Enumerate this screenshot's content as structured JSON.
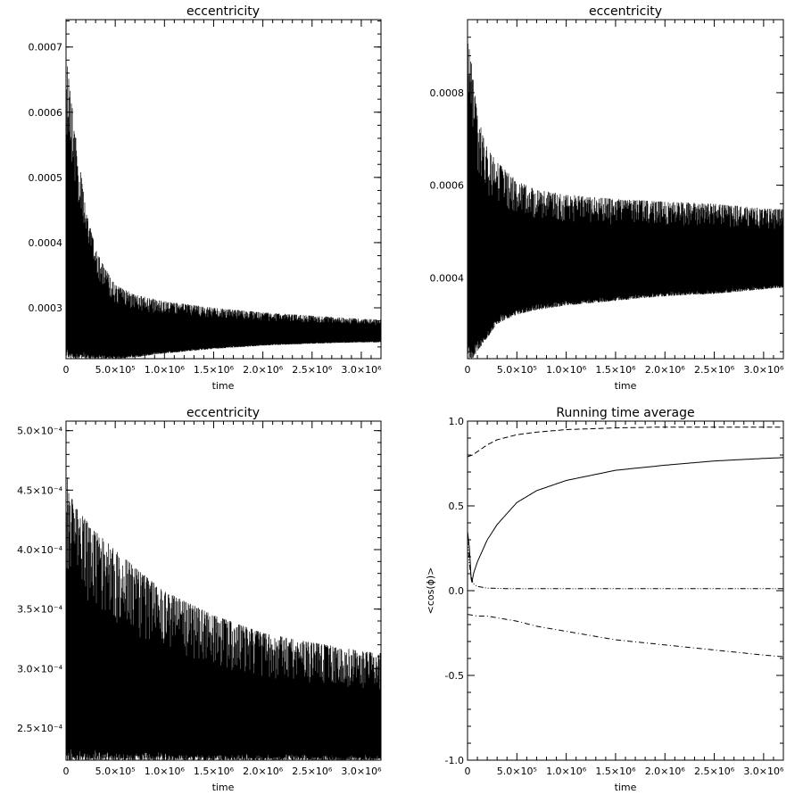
{
  "chart_data": [
    {
      "type": "line",
      "title": "eccentricity",
      "xlabel": "time",
      "ylabel": "",
      "xlim": [
        0,
        3200000
      ],
      "ylim": [
        0.000222,
        0.000742
      ],
      "x_tick_labels": [
        "0",
        "5.0×10⁵",
        "1.0×10⁶",
        "1.5×10⁶",
        "2.0×10⁶",
        "2.5×10⁶",
        "3.0×10⁶"
      ],
      "x_ticks": [
        0,
        500000,
        1000000,
        1500000,
        2000000,
        2500000,
        3000000
      ],
      "y_tick_labels": [
        "0.0003",
        "0.0004",
        "0.0005",
        "0.0006",
        "0.0007"
      ],
      "y_ticks": [
        0.0003,
        0.0004,
        0.0005,
        0.0006,
        0.0007
      ],
      "series": [
        {
          "style": "oscillating-band",
          "x": [
            0,
            50000,
            100000,
            150000,
            200000,
            300000,
            400000,
            500000,
            700000,
            1000000,
            1500000,
            2000000,
            2500000,
            3000000,
            3200000
          ],
          "upper": [
            0.00069,
            0.00063,
            0.00056,
            0.00051,
            0.00045,
            0.000395,
            0.00036,
            0.000335,
            0.00032,
            0.00031,
            0.0003,
            0.000293,
            0.000288,
            0.000283,
            0.000282
          ],
          "lower": [
            0.000222,
            0.000222,
            0.000222,
            0.000222,
            0.000222,
            0.000222,
            0.000222,
            0.000222,
            0.000224,
            0.00023,
            0.000237,
            0.000242,
            0.000245,
            0.000247,
            0.000247
          ]
        }
      ]
    },
    {
      "type": "line",
      "title": "eccentricity",
      "xlabel": "time",
      "ylabel": "",
      "xlim": [
        0,
        3200000
      ],
      "ylim": [
        0.000225,
        0.000958
      ],
      "x_tick_labels": [
        "0",
        "5.0×10⁵",
        "1.0×10⁶",
        "1.5×10⁶",
        "2.0×10⁶",
        "2.5×10⁶",
        "3.0×10⁶"
      ],
      "x_ticks": [
        0,
        500000,
        1000000,
        1500000,
        2000000,
        2500000,
        3000000
      ],
      "y_tick_labels": [
        "0.0004",
        "0.0006",
        "0.0008"
      ],
      "y_ticks": [
        0.0004,
        0.0006,
        0.0008
      ],
      "series": [
        {
          "style": "oscillating-band",
          "x": [
            0,
            50000,
            100000,
            200000,
            300000,
            500000,
            700000,
            1000000,
            1500000,
            2000000,
            2500000,
            3000000,
            3200000
          ],
          "upper": [
            0.00092,
            0.00085,
            0.00075,
            0.00068,
            0.00065,
            0.00061,
            0.00059,
            0.00058,
            0.00057,
            0.000565,
            0.00056,
            0.00055,
            0.000548
          ],
          "lower": [
            0.000225,
            0.000225,
            0.00024,
            0.00027,
            0.0003,
            0.00032,
            0.00033,
            0.00034,
            0.00035,
            0.00036,
            0.000365,
            0.000375,
            0.000378
          ]
        }
      ]
    },
    {
      "type": "line",
      "title": "eccentricity",
      "xlabel": "time",
      "ylabel": "",
      "xlim": [
        0,
        3200000
      ],
      "ylim": [
        0.000223,
        0.000508
      ],
      "x_tick_labels": [
        "0",
        "5.0×10⁵",
        "1.0×10⁶",
        "1.5×10⁶",
        "2.0×10⁶",
        "2.5×10⁶",
        "3.0×10⁶"
      ],
      "x_ticks": [
        0,
        500000,
        1000000,
        1500000,
        2000000,
        2500000,
        3000000
      ],
      "y_tick_labels": [
        "2.5×10⁻⁴",
        "3.0×10⁻⁴",
        "3.5×10⁻⁴",
        "4.0×10⁻⁴",
        "4.5×10⁻⁴",
        "5.0×10⁻⁴"
      ],
      "y_ticks": [
        0.00025,
        0.0003,
        0.00035,
        0.0004,
        0.00045,
        0.0005
      ],
      "series": [
        {
          "style": "oscillating-band",
          "x": [
            0,
            50000,
            100000,
            200000,
            300000,
            500000,
            700000,
            1000000,
            1500000,
            2000000,
            2500000,
            3000000,
            3200000
          ],
          "upper": [
            0.00047,
            0.000445,
            0.000435,
            0.000425,
            0.000415,
            0.0004,
            0.000385,
            0.000365,
            0.000345,
            0.00033,
            0.000322,
            0.000315,
            0.000313
          ],
          "lower": [
            0.000223,
            0.000223,
            0.000223,
            0.000223,
            0.000223,
            0.000223,
            0.000223,
            0.000223,
            0.000223,
            0.000223,
            0.000223,
            0.000223,
            0.000223
          ]
        }
      ]
    },
    {
      "type": "line",
      "title": "Running time average",
      "xlabel": "time",
      "ylabel": "<cos(ϕ)>",
      "xlim": [
        0,
        3200000
      ],
      "ylim": [
        -1.0,
        1.0
      ],
      "x_tick_labels": [
        "0",
        "5.0×10⁵",
        "1.0×10⁶",
        "1.5×10⁶",
        "2.0×10⁶",
        "2.5×10⁶",
        "3.0×10⁶"
      ],
      "x_ticks": [
        0,
        500000,
        1000000,
        1500000,
        2000000,
        2500000,
        3000000
      ],
      "y_tick_labels": [
        "-1.0",
        "-0.5",
        "0.0",
        "0.5",
        "1.0"
      ],
      "y_ticks": [
        -1.0,
        -0.5,
        0.0,
        0.5,
        1.0
      ],
      "series": [
        {
          "dash": "dashed",
          "x": [
            0,
            50000,
            100000,
            200000,
            300000,
            500000,
            700000,
            1000000,
            1500000,
            2000000,
            2500000,
            3000000,
            3200000
          ],
          "y": [
            0.79,
            0.8,
            0.82,
            0.86,
            0.89,
            0.92,
            0.935,
            0.95,
            0.96,
            0.965,
            0.965,
            0.965,
            0.965
          ]
        },
        {
          "dash": "solid",
          "x": [
            0,
            20000,
            40000,
            60000,
            100000,
            200000,
            300000,
            500000,
            700000,
            1000000,
            1500000,
            2000000,
            2500000,
            3000000,
            3200000
          ],
          "y": [
            0.35,
            0.25,
            0.03,
            0.1,
            0.17,
            0.3,
            0.39,
            0.52,
            0.59,
            0.65,
            0.71,
            0.74,
            0.765,
            0.78,
            0.785
          ]
        },
        {
          "dash": "dash-dot-dot",
          "x": [
            0,
            20000,
            40000,
            60000,
            100000,
            200000,
            400000,
            1000000,
            2000000,
            3000000,
            3200000
          ],
          "y": [
            0.3,
            0.15,
            0.07,
            0.04,
            0.025,
            0.015,
            0.012,
            0.012,
            0.012,
            0.012,
            0.012
          ]
        },
        {
          "dash": "dash-dot",
          "x": [
            0,
            100000,
            200000,
            300000,
            500000,
            700000,
            1000000,
            1500000,
            2000000,
            2500000,
            3000000,
            3200000
          ],
          "y": [
            -0.14,
            -0.15,
            -0.15,
            -0.16,
            -0.18,
            -0.21,
            -0.24,
            -0.29,
            -0.32,
            -0.35,
            -0.38,
            -0.39
          ]
        }
      ]
    }
  ]
}
